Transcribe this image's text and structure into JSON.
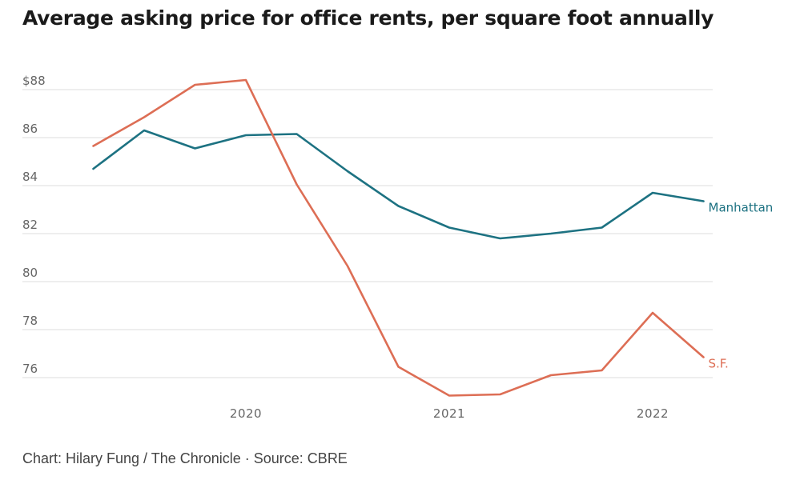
{
  "chart_data": {
    "type": "line",
    "title": "Average asking price for office rents, per square foot annually",
    "credit": "Chart: Hilary Fung / The Chronicle · Source: CBRE",
    "ylim": [
      75,
      88.4
    ],
    "y_ticks": [
      {
        "value": 88,
        "label": "$88"
      },
      {
        "value": 86,
        "label": "86"
      },
      {
        "value": 84,
        "label": "84"
      },
      {
        "value": 82,
        "label": "82"
      },
      {
        "value": 80,
        "label": "80"
      },
      {
        "value": 78,
        "label": "78"
      },
      {
        "value": 76,
        "label": "76"
      }
    ],
    "x_ticks": [
      {
        "value": 2020,
        "label": "2020"
      },
      {
        "value": 2021,
        "label": "2021"
      },
      {
        "value": 2022,
        "label": "2022"
      }
    ],
    "x": [
      2019.25,
      2019.5,
      2019.75,
      2020.0,
      2020.25,
      2020.5,
      2020.75,
      2021.0,
      2021.25,
      2021.5,
      2021.75,
      2022.0,
      2022.25
    ],
    "series": [
      {
        "name": "Manhattan",
        "color": "#1d7282",
        "values": [
          84.7,
          86.3,
          85.55,
          86.1,
          86.15,
          84.6,
          83.15,
          82.25,
          81.8,
          82.0,
          82.25,
          83.7,
          83.35
        ]
      },
      {
        "name": "S.F.",
        "color": "#dd6e55",
        "values": [
          85.65,
          86.85,
          88.2,
          88.4,
          84.05,
          80.65,
          76.45,
          75.25,
          75.3,
          76.1,
          76.3,
          78.7,
          76.85
        ]
      }
    ],
    "gridlines": "horizontal",
    "legend": "direct labels at line ends"
  }
}
